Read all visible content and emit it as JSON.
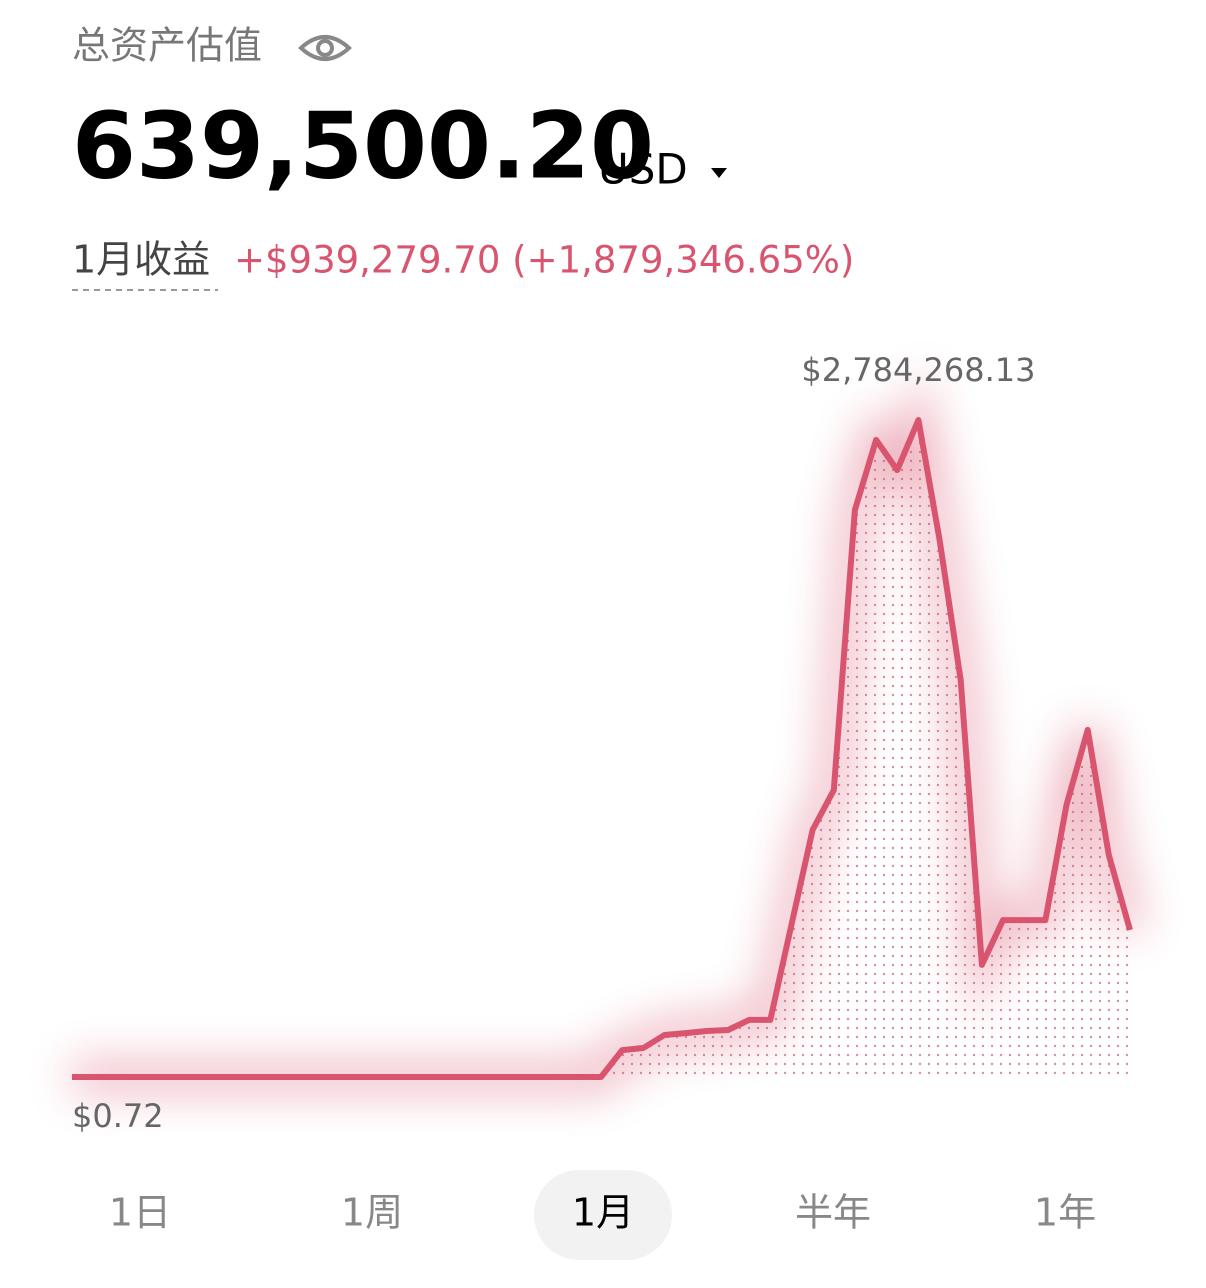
{
  "header": {
    "title": "总资产估值",
    "total": "639,500.20",
    "currency": "USD",
    "pnl_label": "1月收益",
    "pnl_value": "+$939,279.70 (+1,879,346.65%)"
  },
  "chart_data": {
    "type": "line",
    "color": "#d9556f",
    "max_label": "$2,784,268.13",
    "min_label": "$0.72",
    "values": [
      0.72,
      0.72,
      0.72,
      0.72,
      0.72,
      0.72,
      0.72,
      0.72,
      0.72,
      0.72,
      0.72,
      0.72,
      0.72,
      0.72,
      0.72,
      0.72,
      0.72,
      0.72,
      0.72,
      0.72,
      0.72,
      0.72,
      0.72,
      0.72,
      0.72,
      0.72,
      114000,
      123000,
      178000,
      186000,
      195000,
      199000,
      242000,
      242000,
      644000,
      1047000,
      1216000,
      2403000,
      2700000,
      2572000,
      2784268.13,
      2276000,
      1682000,
      475000,
      665000,
      665000,
      665000,
      1153000,
      1471000,
      941000,
      623000
    ]
  },
  "tabs": [
    "1日",
    "1周",
    "1月",
    "半年",
    "1年"
  ],
  "selected_tab": 2
}
